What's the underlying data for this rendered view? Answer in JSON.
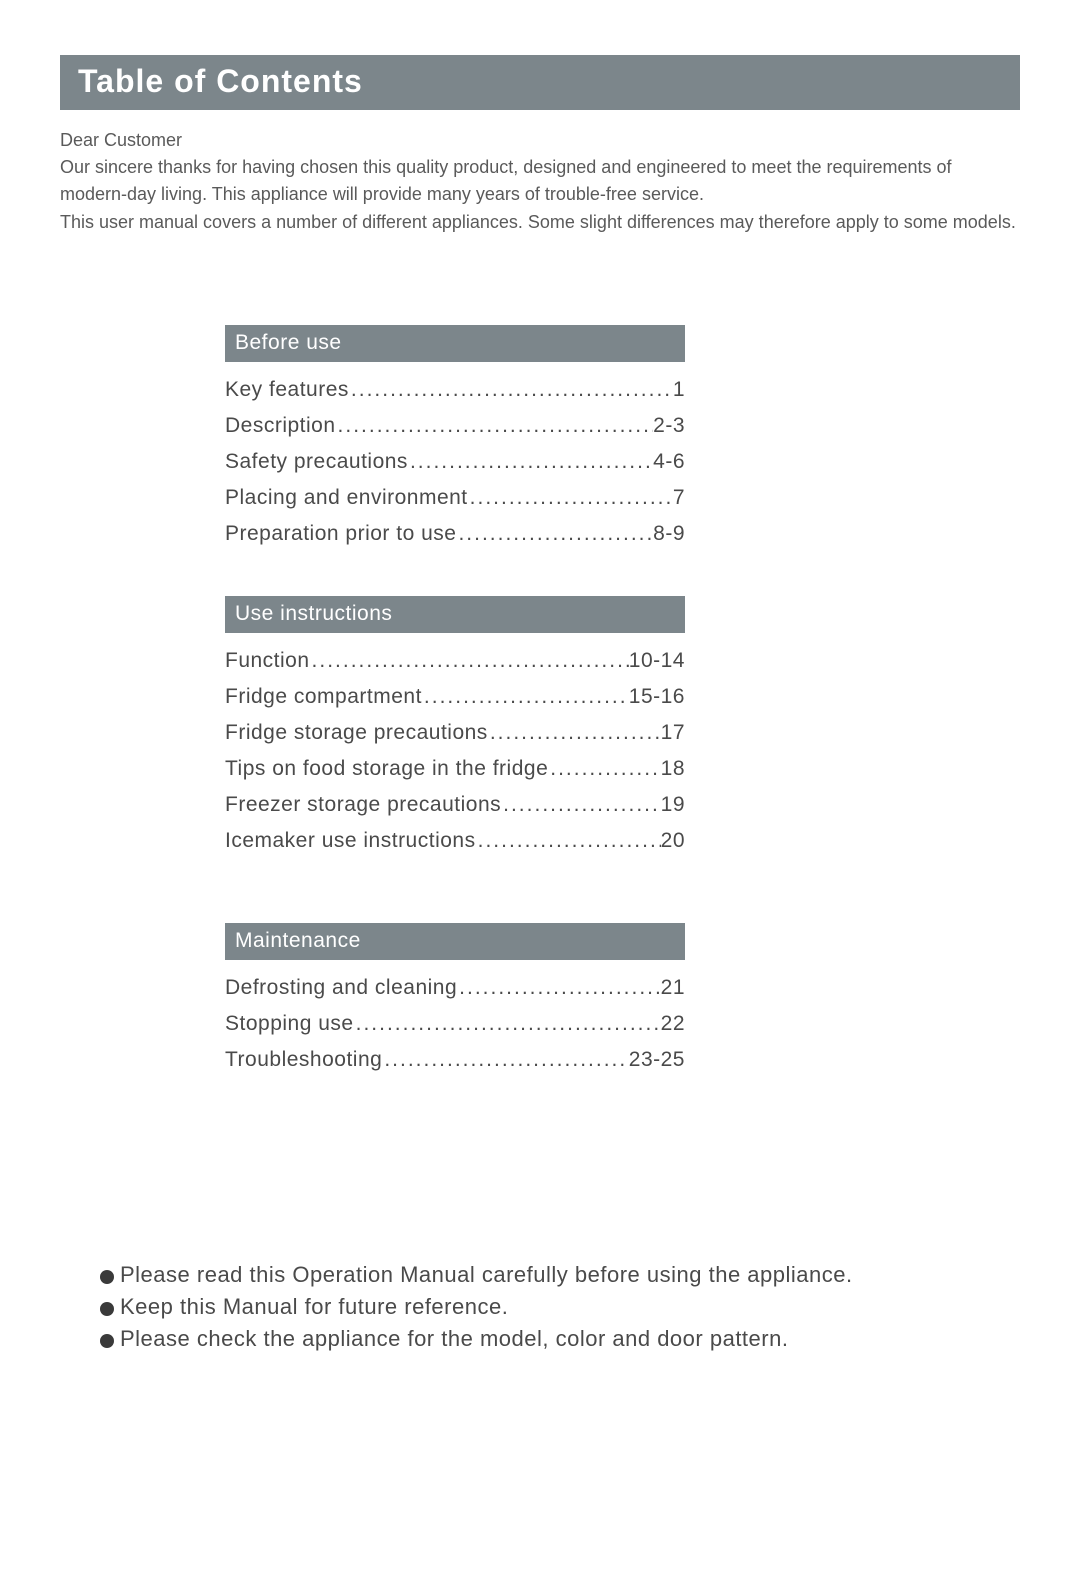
{
  "colors": {
    "header_bg": "#7c868b",
    "header_text": "#ffffff",
    "body_text": "#4a4a4a",
    "intro_text": "#5a5a5a",
    "page_bg": "#ffffff",
    "bullet": "#3a3a3a"
  },
  "typography": {
    "title_fontsize": 32,
    "section_header_fontsize": 21,
    "toc_fontsize": 21,
    "intro_fontsize": 18,
    "notes_fontsize": 22,
    "font_family": "Arial"
  },
  "title": "Table of Contents",
  "intro": {
    "line1": "Dear Customer",
    "line2": "Our sincere thanks for having chosen this quality product, designed and engineered to meet the requirements of",
    "line3": "modern-day living. This appliance will provide many years of trouble-free service.",
    "line4": "This user manual covers a number of different appliances. Some slight differences may therefore apply to some models."
  },
  "sections": [
    {
      "heading": "Before use",
      "items": [
        {
          "label": "Key features",
          "page": "1"
        },
        {
          "label": "Description",
          "page": "2-3"
        },
        {
          "label": "Safety precautions",
          "page": "4-6"
        },
        {
          "label": "Placing  and environment",
          "page": "7"
        },
        {
          "label": "Preparation prior to use",
          "page": "8-9"
        }
      ]
    },
    {
      "heading": "Use instructions",
      "items": [
        {
          "label": "Function",
          "page": "10-14"
        },
        {
          "label": "Fridge compartment",
          "page": "15-16"
        },
        {
          "label": "Fridge storage precautions",
          "page": "17"
        },
        {
          "label": "Tips on food storage in the fridge",
          "page": "18"
        },
        {
          "label": "Freezer storage precautions",
          "page": "19"
        },
        {
          "label": "Icemaker use instructions",
          "page": "20"
        }
      ]
    },
    {
      "heading": "Maintenance",
      "items": [
        {
          "label": "Defrosting  and  cleaning",
          "page": "21"
        },
        {
          "label": "Stopping use",
          "page": "22"
        },
        {
          "label": "Troubleshooting",
          "page": "23-25"
        }
      ]
    }
  ],
  "notes": [
    "Please read this Operation Manual carefully before using the appliance.",
    "Keep this Manual for future reference.",
    "Please check the appliance for the model, color and door pattern."
  ],
  "dots": "................................................................"
}
